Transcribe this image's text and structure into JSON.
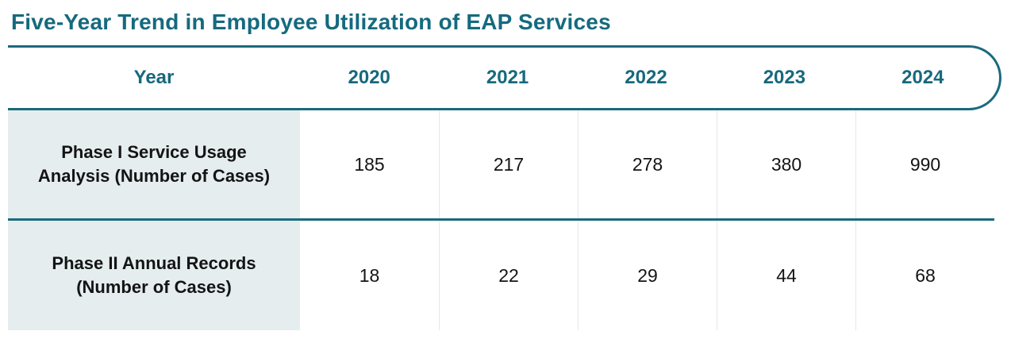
{
  "title": "Five-Year Trend in Employee Utilization of EAP Services",
  "colors": {
    "accent_teal": "#17697d",
    "border_teal": "#1b6a7c",
    "label_cell_bg": "#e5edef",
    "separator": "#e3e9eb",
    "text_dark": "#141414"
  },
  "chart_data": {
    "type": "table",
    "title": "Five-Year Trend in Employee Utilization of EAP Services",
    "columns": [
      "Year",
      "2020",
      "2021",
      "2022",
      "2023",
      "2024"
    ],
    "rows": [
      {
        "label": "Phase I Service Usage Analysis (Number of Cases)",
        "values": [
          185,
          217,
          278,
          380,
          990
        ]
      },
      {
        "label": "Phase II Annual Records (Number of Cases)",
        "values": [
          18,
          22,
          29,
          44,
          68
        ]
      }
    ]
  }
}
